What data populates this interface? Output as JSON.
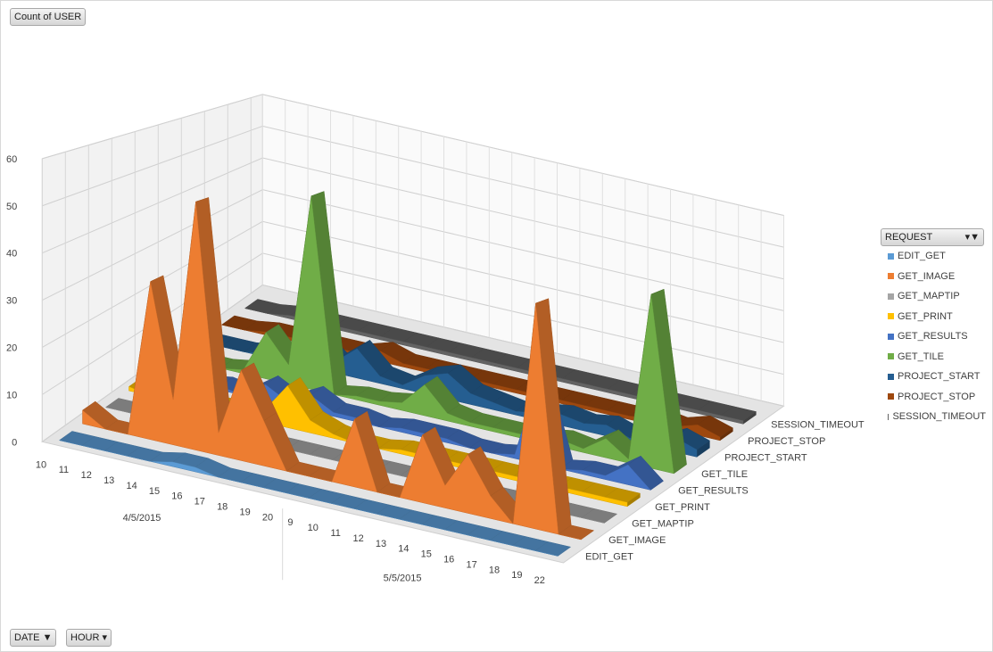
{
  "field_buttons": {
    "values": "Count of USER",
    "axis_date": "DATE",
    "axis_hour": "HOUR",
    "legend_field": "REQUEST"
  },
  "chart_data": {
    "type": "area",
    "subtype": "3d-area",
    "categories": [
      "10",
      "11",
      "12",
      "13",
      "14",
      "15",
      "16",
      "17",
      "18",
      "19",
      "20",
      "9",
      "10",
      "11",
      "12",
      "13",
      "14",
      "15",
      "16",
      "17",
      "18",
      "19",
      "22"
    ],
    "category_groups": [
      {
        "label": "4/5/2015",
        "count": 11
      },
      {
        "label": "5/5/2015",
        "count": 12
      }
    ],
    "ylim": [
      0,
      60
    ],
    "yticks": [
      0,
      10,
      20,
      30,
      40,
      50,
      60
    ],
    "grid": true,
    "legend_position": "right",
    "series": [
      {
        "name": "EDIT_GET",
        "color": "#5b9bd5",
        "values": [
          0,
          0,
          0,
          0,
          0,
          1,
          1,
          0,
          0,
          0,
          0,
          0,
          0,
          0,
          0,
          0,
          0,
          0,
          0,
          0,
          0,
          0,
          0
        ]
      },
      {
        "name": "GET_IMAGE",
        "color": "#ed7d31",
        "values": [
          3,
          0,
          0,
          35,
          10,
          55,
          5,
          20,
          10,
          0,
          0,
          0,
          15,
          0,
          0,
          15,
          5,
          13,
          5,
          0,
          50,
          0,
          0
        ]
      },
      {
        "name": "GET_MAPTIP",
        "color": "#a5a5a5",
        "values": [
          0,
          0,
          0,
          0,
          0,
          0,
          0,
          0,
          0,
          0,
          0,
          0,
          0,
          0,
          0,
          0,
          0,
          0,
          0,
          0,
          0,
          0,
          0
        ]
      },
      {
        "name": "GET_PRINT",
        "color": "#ffc000",
        "values": [
          1,
          0,
          0,
          1,
          1,
          1,
          3,
          10,
          3,
          1,
          0,
          0,
          1,
          1,
          1,
          1,
          1,
          1,
          1,
          1,
          1,
          1,
          1
        ]
      },
      {
        "name": "GET_RESULTS",
        "color": "#4472c4",
        "values": [
          0,
          0,
          0,
          1,
          0,
          4,
          1,
          4,
          1,
          1,
          0,
          1,
          1,
          1,
          0,
          0,
          1,
          20,
          0,
          1,
          1,
          5,
          0
        ]
      },
      {
        "name": "GET_TILE",
        "color": "#70ad47",
        "values": [
          0,
          0,
          0,
          1,
          12,
          5,
          50,
          0,
          1,
          1,
          2,
          8,
          2,
          1,
          1,
          1,
          1,
          2,
          1,
          5,
          1,
          45,
          0
        ]
      },
      {
        "name": "PROJECT_START",
        "color": "#255e91",
        "values": [
          0,
          0,
          0,
          1,
          1,
          8,
          3,
          8,
          2,
          1,
          5,
          7,
          3,
          2,
          1,
          2,
          3,
          2,
          3,
          1,
          1,
          4,
          2
        ]
      },
      {
        "name": "PROJECT_STOP",
        "color": "#9e480e",
        "values": [
          0,
          0,
          1,
          1,
          1,
          1,
          1,
          3,
          1,
          1,
          1,
          1,
          1,
          1,
          1,
          1,
          1,
          1,
          1,
          2,
          1,
          3,
          1
        ]
      },
      {
        "name": "SESSION_TIMEOUT",
        "color": "#636363",
        "values": [
          0,
          0,
          1,
          1,
          1,
          1,
          1,
          1,
          1,
          1,
          1,
          1,
          1,
          1,
          1,
          1,
          1,
          1,
          1,
          1,
          1,
          1,
          1
        ]
      }
    ]
  }
}
